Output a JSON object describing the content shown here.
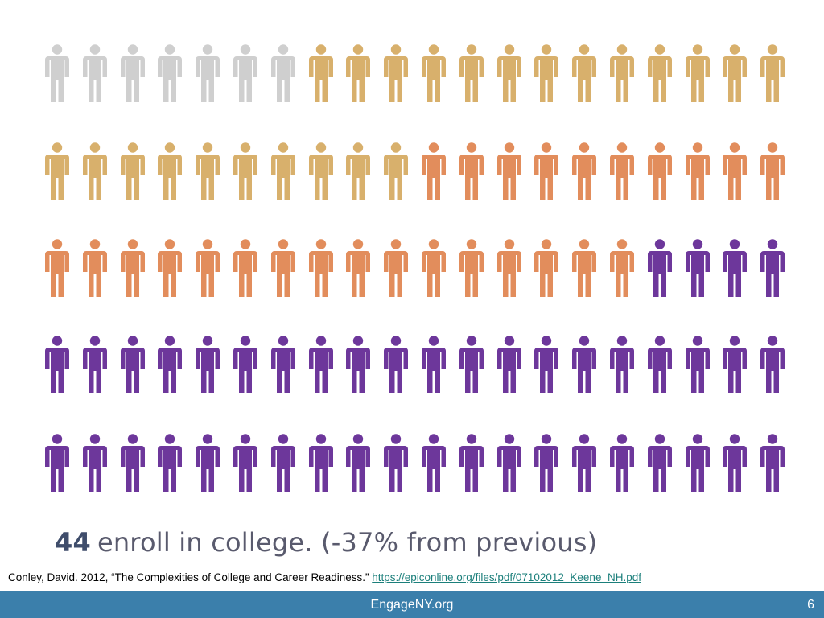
{
  "colors": {
    "gray": "#cfcfcf",
    "tan": "#d8b06c",
    "orange": "#e28d5c",
    "purple": "#6d379b",
    "footer": "#3b7fab"
  },
  "figure_grid": {
    "rows": 5,
    "per_row": 20,
    "groups": [
      {
        "color_key": "gray",
        "count": 7
      },
      {
        "color_key": "tan",
        "count": 23
      },
      {
        "color_key": "orange",
        "count": 26
      },
      {
        "color_key": "purple",
        "count": 44
      }
    ]
  },
  "headline": {
    "count": "44",
    "text": "enroll in college. (-37% from previous)"
  },
  "citation": {
    "text": "Conley, David. 2012, “The Complexities of College and Career Readiness.” ",
    "link": "https://epiconline.org/files/pdf/07102012_Keene_NH.pdf"
  },
  "footer": {
    "site": "EngageNY.org",
    "slide_number": "6"
  }
}
